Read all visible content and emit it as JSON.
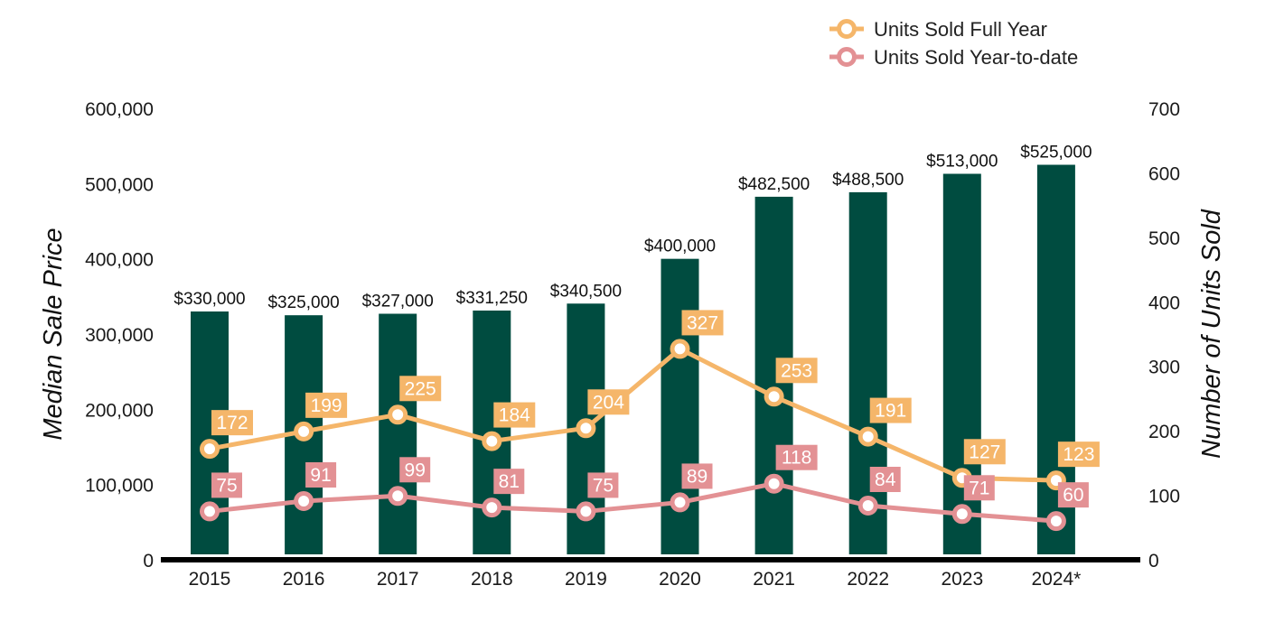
{
  "chart_data": {
    "type": "bar",
    "categories": [
      "2015",
      "2016",
      "2017",
      "2018",
      "2019",
      "2020",
      "2021",
      "2022",
      "2023",
      "2024*"
    ],
    "series": [
      {
        "type": "bar",
        "axis": "left",
        "color": "#004c40",
        "values": [
          330000,
          325000,
          327000,
          331250,
          340500,
          400000,
          482500,
          488500,
          513000,
          525000
        ],
        "labels": [
          "$330,000",
          "$325,000",
          "$327,000",
          "$331,250",
          "$340,500",
          "$400,000",
          "$482,500",
          "$488,500",
          "$513,000",
          "$525,000"
        ]
      },
      {
        "name": "Units Sold Full Year",
        "type": "line",
        "axis": "right",
        "color": "#f5b66a",
        "values": [
          172,
          199,
          225,
          184,
          204,
          327,
          253,
          191,
          127,
          123
        ]
      },
      {
        "name": "Units Sold Year-to-date",
        "type": "line",
        "axis": "right",
        "color": "#e39194",
        "values": [
          75,
          91,
          99,
          81,
          75,
          89,
          118,
          84,
          71,
          60
        ]
      }
    ],
    "ylabel": "Median Sale Price",
    "ylabel_right": "Number of Units Sold",
    "ylim": [
      0,
      600000
    ],
    "ylim_right": [
      0,
      700
    ],
    "yticks": [
      "0",
      "100,000",
      "200,000",
      "300,000",
      "400,000",
      "500,000",
      "600,000"
    ],
    "yticks_right": [
      "0",
      "100",
      "200",
      "300",
      "400",
      "500",
      "600",
      "700"
    ],
    "legend": "top-right",
    "grid": false
  }
}
